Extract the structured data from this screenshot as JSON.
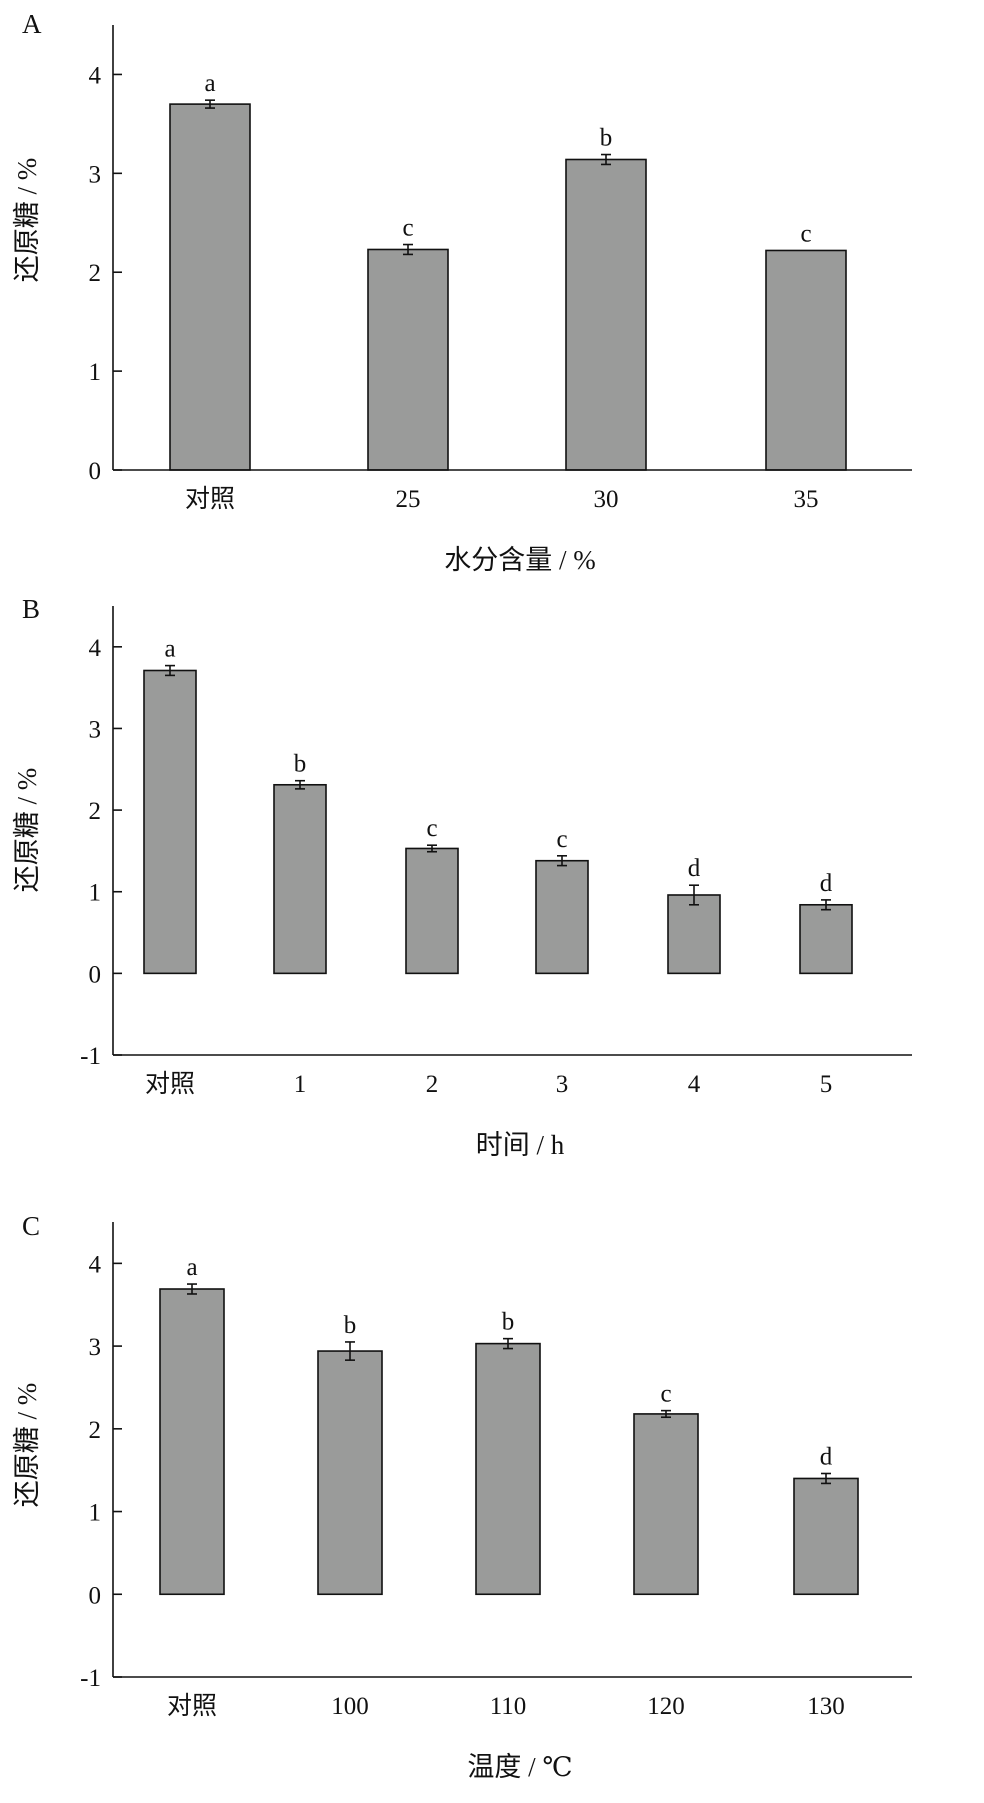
{
  "chart_data": [
    {
      "panel": "A",
      "type": "bar",
      "xlabel": "水分含量 / %",
      "ylabel": "还原糖 / %",
      "ylim": [
        0,
        4.5
      ],
      "yticks": [
        "0",
        "1",
        "2",
        "3",
        "4"
      ],
      "categories": [
        "对照",
        "25",
        "30",
        "35"
      ],
      "values": [
        3.7,
        2.23,
        3.14,
        2.22
      ],
      "errors": [
        0.04,
        0.05,
        0.05,
        0.0
      ],
      "significance": [
        "a",
        "c",
        "b",
        "c"
      ],
      "color": "#9a9b9a",
      "grid": false
    },
    {
      "panel": "B",
      "type": "bar",
      "xlabel": "时间 / h",
      "ylabel": "还原糖 / %",
      "ylim": [
        -1,
        4.5
      ],
      "yticks": [
        "-1",
        "0",
        "1",
        "2",
        "3",
        "4"
      ],
      "categories": [
        "对照",
        "1",
        "2",
        "3",
        "4",
        "5"
      ],
      "values": [
        3.71,
        2.31,
        1.53,
        1.38,
        0.96,
        0.84
      ],
      "errors": [
        0.06,
        0.05,
        0.04,
        0.06,
        0.12,
        0.06
      ],
      "significance": [
        "a",
        "b",
        "c",
        "c",
        "d",
        "d"
      ],
      "color": "#9a9b9a",
      "grid": false
    },
    {
      "panel": "C",
      "type": "bar",
      "xlabel": "温度 / ℃",
      "ylabel": "还原糖 / %",
      "ylim": [
        -1,
        4.5
      ],
      "yticks": [
        "-1",
        "0",
        "1",
        "2",
        "3",
        "4"
      ],
      "categories": [
        "对照",
        "100",
        "110",
        "120",
        "130"
      ],
      "values": [
        3.69,
        2.94,
        3.03,
        2.18,
        1.4
      ],
      "errors": [
        0.06,
        0.11,
        0.06,
        0.04,
        0.06
      ],
      "significance": [
        "a",
        "b",
        "b",
        "c",
        "d"
      ],
      "color": "#9a9b9a",
      "grid": false
    }
  ]
}
